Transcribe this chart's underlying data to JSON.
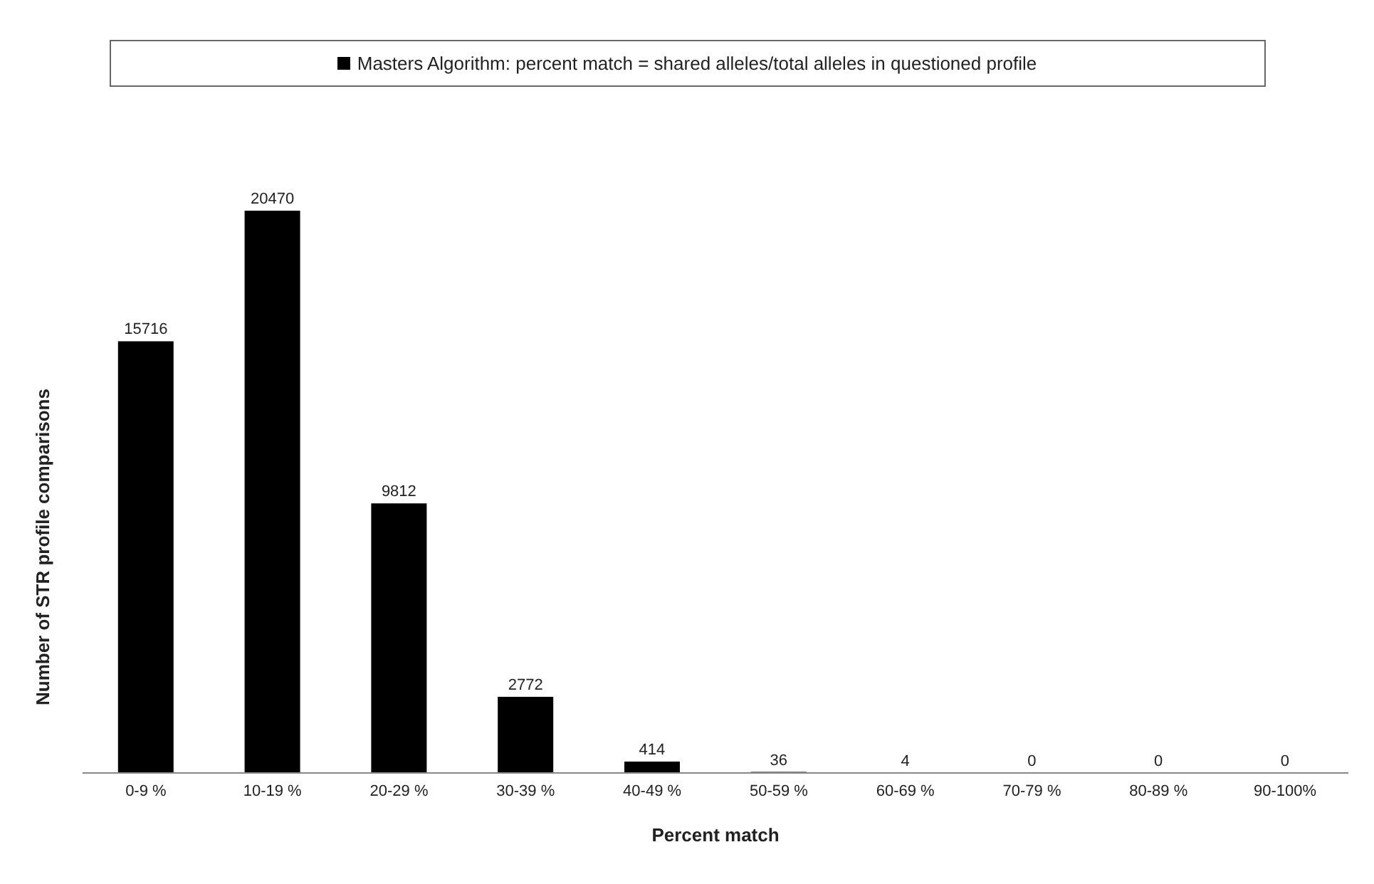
{
  "chart_data": {
    "type": "bar",
    "xlabel": "Percent match",
    "ylabel": "Number of STR profile comparisons",
    "categories": [
      "0-9 %",
      "10-19 %",
      "20-29 %",
      "30-39 %",
      "40-49 %",
      "50-59 %",
      "60-69 %",
      "70-79 %",
      "80-89 %",
      "90-100%"
    ],
    "series": [
      {
        "name": "Masters Algorithm: percent match = shared alleles/total alleles in questioned profile",
        "color": "#000000",
        "values": [
          15716,
          20470,
          9812,
          2772,
          414,
          36,
          4,
          0,
          0,
          0
        ]
      }
    ],
    "data_labels": true,
    "legend": "top",
    "tick_labels": "x",
    "grid": false
  }
}
